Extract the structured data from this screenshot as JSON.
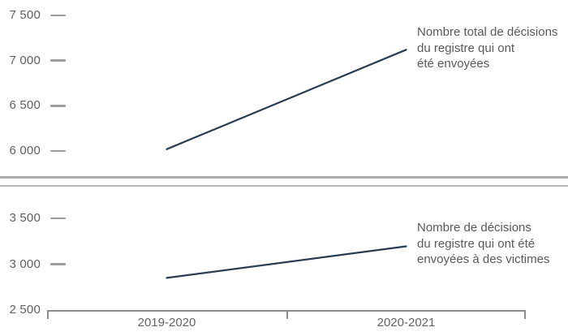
{
  "page": {
    "background": "#ffffff",
    "description": "Deux graphiques lineaires empiles"
  },
  "colors": {
    "series_line": "#2b3d52",
    "text_gray": "#5f5f5f",
    "annotation_gray": "#595959",
    "axis_gray": "#8c8c8c",
    "tick_dash_gray": "#9c9c9c",
    "divider_gray": "#ababab"
  },
  "chart_data": [
    {
      "type": "line",
      "title": "",
      "annotation": "Nombre total de décisions\ndu registre qui ont\nété envoyées",
      "categories": [
        "2019-2020",
        "2020-2021"
      ],
      "values": [
        6020,
        7120
      ],
      "ylim": [
        6000,
        7500
      ],
      "yticks": [
        {
          "label": "7 500",
          "value": 7500,
          "dash": true
        },
        {
          "label": "7 000",
          "value": 7000,
          "dash": true
        },
        {
          "label": "6 500",
          "value": 6500,
          "dash": true
        },
        {
          "label": "6 000",
          "value": 6000,
          "dash": true
        }
      ],
      "grid": false,
      "legend": "none",
      "x_axis_visible": false,
      "x_labels_visible": false
    },
    {
      "type": "line",
      "title": "",
      "annotation": "Nombre de décisions\ndu registre qui ont été\nenvoyées à des victimes",
      "categories": [
        "2019-2020",
        "2020-2021"
      ],
      "values": [
        2850,
        3195
      ],
      "ylim": [
        2500,
        3500
      ],
      "yticks": [
        {
          "label": "3 500",
          "value": 3500,
          "dash": true
        },
        {
          "label": "3 000",
          "value": 3000,
          "dash": true
        },
        {
          "label": "2 500",
          "value": 2500,
          "dash": false
        }
      ],
      "grid": false,
      "legend": "none",
      "x_axis_visible": true,
      "x_labels_visible": true
    }
  ]
}
